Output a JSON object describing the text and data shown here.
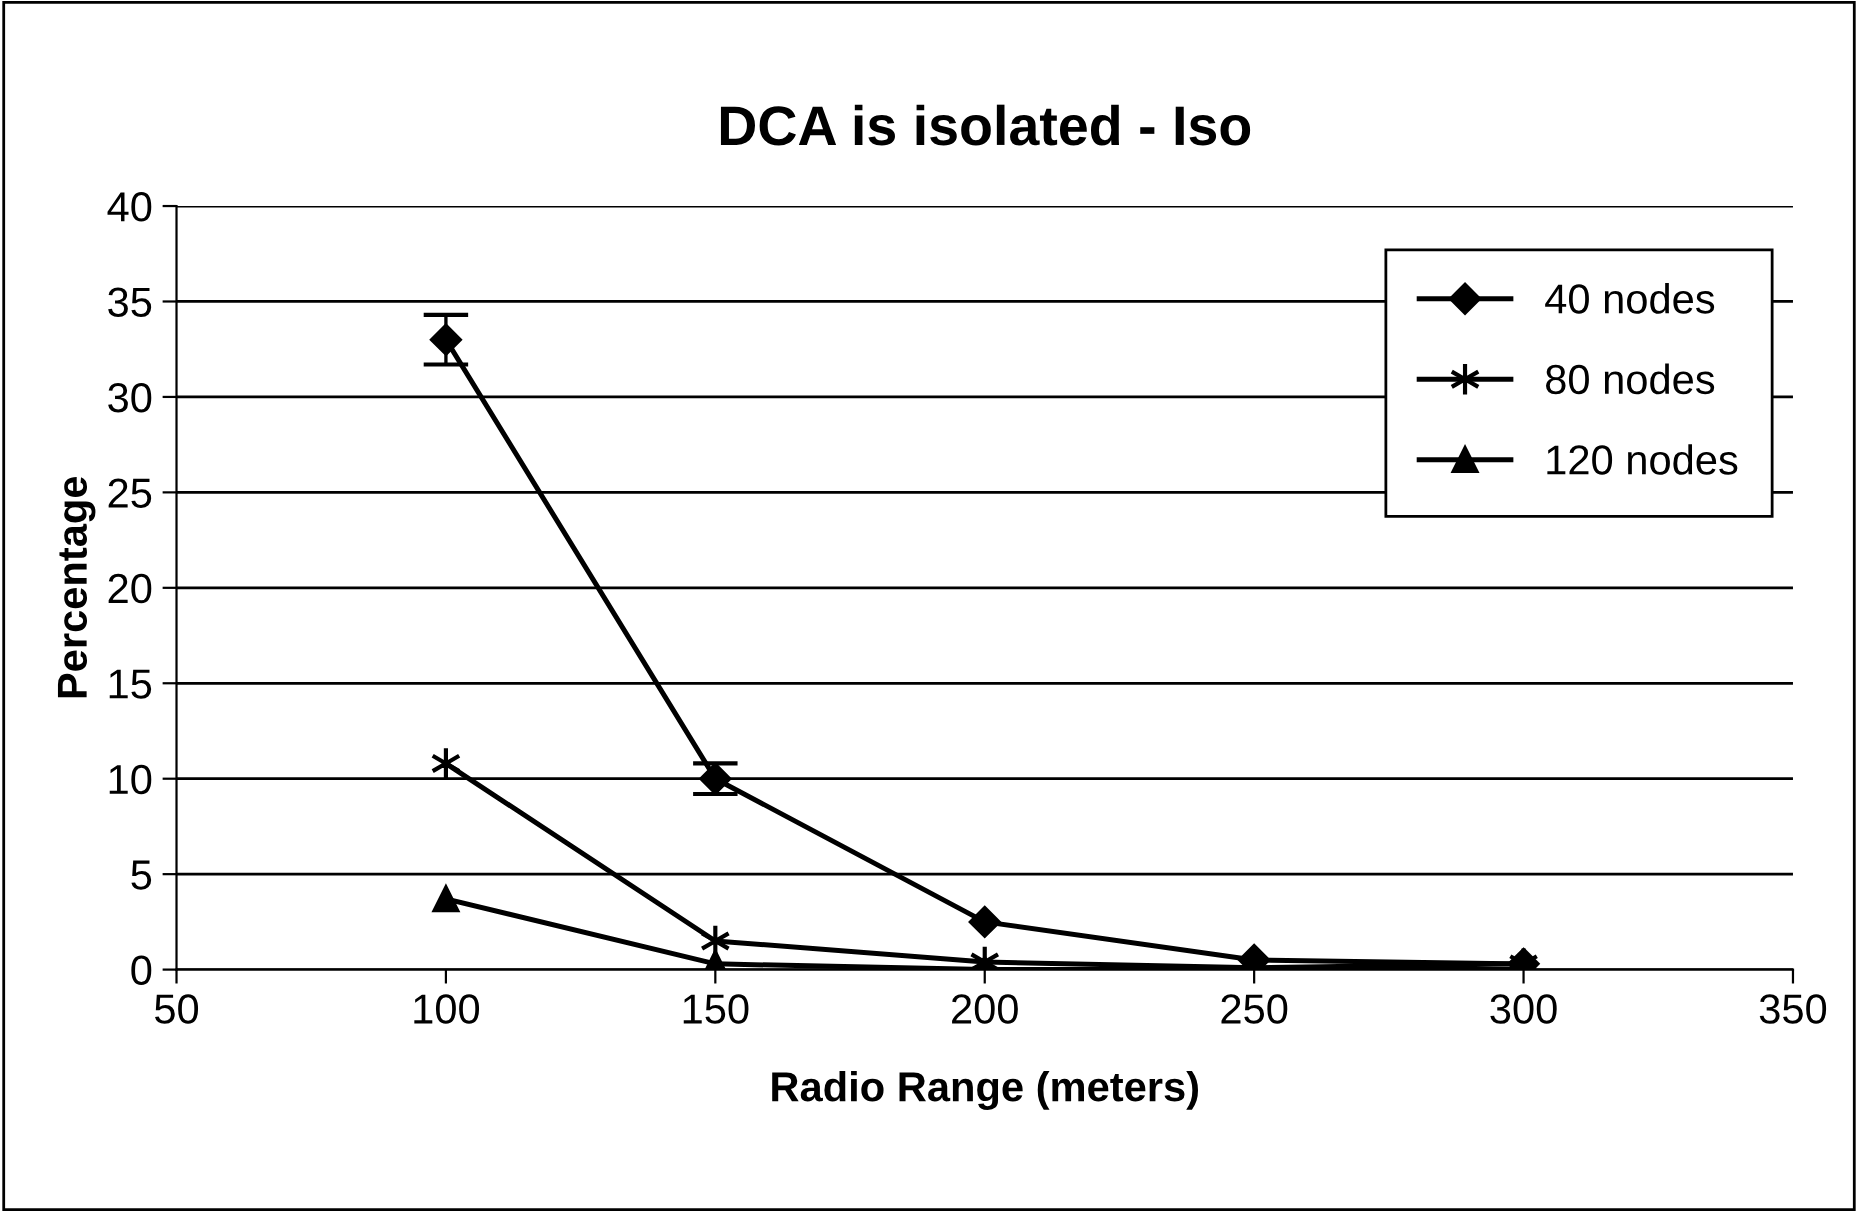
{
  "chart_data": {
    "type": "line",
    "title": "DCA is isolated - Iso",
    "xlabel": "Radio Range (meters)",
    "ylabel": "Percentage",
    "x": [
      100,
      150,
      200,
      250,
      300
    ],
    "series": [
      {
        "name": "40 nodes",
        "color": "#000000",
        "marker": "diamond",
        "values": [
          33,
          10,
          2.5,
          0.5,
          0.3
        ],
        "errors": [
          1.3,
          0.8,
          null,
          null,
          null
        ]
      },
      {
        "name": "80 nodes",
        "color": "#000000",
        "marker": "cross",
        "values": [
          10.8,
          1.5,
          0.4,
          0.1,
          0.3
        ]
      },
      {
        "name": "120 nodes",
        "color": "#000000",
        "marker": "triangle",
        "values": [
          3.7,
          0.3,
          0,
          0,
          0
        ]
      }
    ],
    "xlim": [
      50,
      350
    ],
    "xticks": [
      50,
      100,
      150,
      200,
      250,
      300,
      350
    ],
    "ylim": [
      0,
      40
    ],
    "yticks": [
      0,
      5,
      10,
      15,
      20,
      25,
      30,
      35,
      40
    ],
    "grid": "y",
    "legend": "top right",
    "line_style": "solid"
  }
}
